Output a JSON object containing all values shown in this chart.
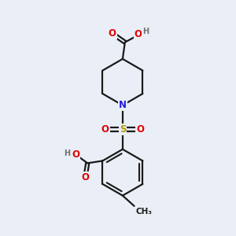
{
  "bg_color": "#eaeff7",
  "bond_color": "#1a1a1a",
  "bond_width": 1.6,
  "atom_colors": {
    "O": "#e00000",
    "N": "#2020e0",
    "S": "#b8960a",
    "H": "#707070",
    "C": "#1a1a1a"
  },
  "font_size_atom": 8.5,
  "font_size_small": 7.5,
  "font_size_h": 7.0
}
